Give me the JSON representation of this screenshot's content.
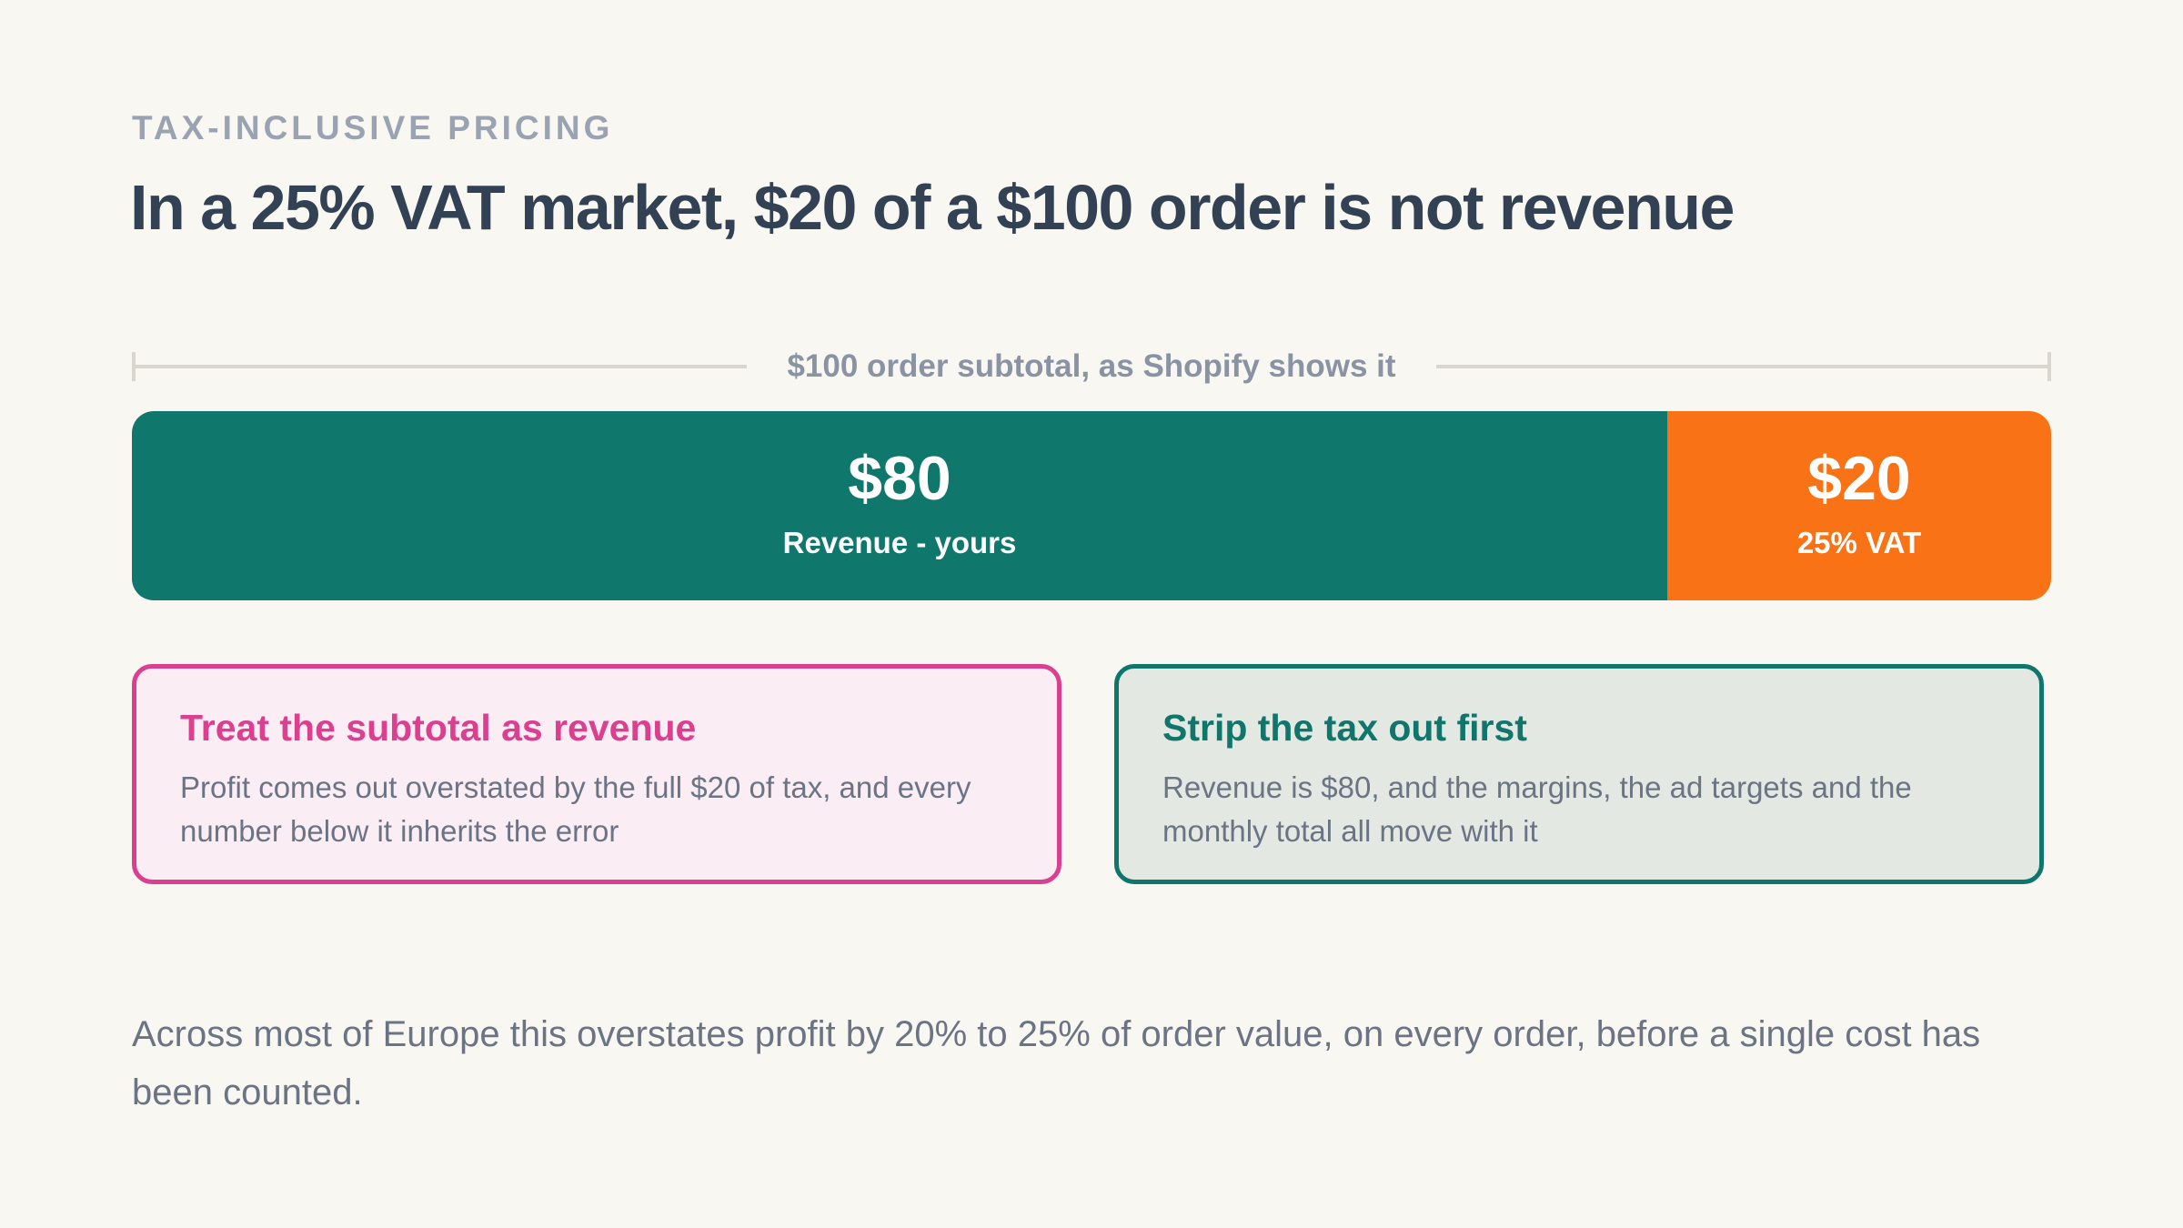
{
  "header": {
    "eyebrow": "TAX-INCLUSIVE PRICING",
    "headline": "In a 25% VAT market, $20 of a $100 order is not revenue"
  },
  "bracket": {
    "label": "$100 order subtotal, as Shopify shows it"
  },
  "bar": {
    "segments": [
      {
        "amount": "$80",
        "label": "Revenue - yours",
        "value": 80,
        "color": "#10776d"
      },
      {
        "amount": "$20",
        "label": "25% VAT",
        "value": 20,
        "color": "#f97316"
      }
    ]
  },
  "cards": {
    "wrong": {
      "title": "Treat the subtotal as revenue",
      "body": "Profit comes out overstated by the full $20 of tax, and every number below it inherits the error",
      "accent": "#db3f8f"
    },
    "right": {
      "title": "Strip the tax out first",
      "body": "Revenue is $80, and the margins, the ad targets and the monthly total all move with it",
      "accent": "#10766c"
    }
  },
  "footnote": "Across most of Europe this overstates profit by 20% to 25% of order value, on every order, before a single cost has been counted."
}
